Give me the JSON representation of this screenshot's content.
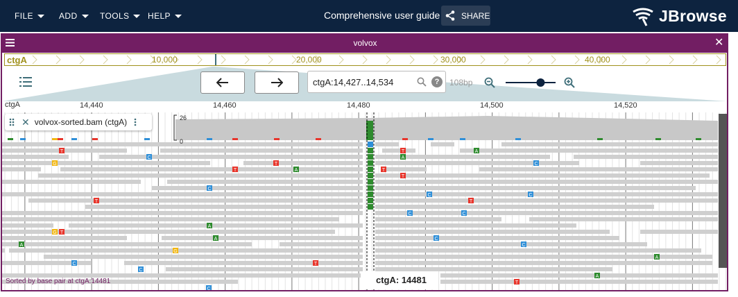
{
  "menus": [
    "FILE",
    "ADD",
    "TOOLS",
    "HELP"
  ],
  "session_title": "Comprehensive user guide",
  "share_label": "SHARE",
  "logo_text": "JBrowse",
  "view": {
    "name": "volvox",
    "overview": {
      "refname": "ctgA",
      "ticks": [
        {
          "label": "10,000",
          "bp": 10000
        },
        {
          "label": "20,000",
          "bp": 20000
        },
        {
          "label": "30,000",
          "bp": 30000
        },
        {
          "label": "40,000",
          "bp": 40000
        }
      ]
    },
    "location": "ctgA:14,427..14,534",
    "width_label": "108bp",
    "zoom_level": 0.7,
    "ruler": {
      "refname": "ctgA",
      "ticks": [
        {
          "label": "14,440",
          "bp": 14440
        },
        {
          "label": "14,460",
          "bp": 14460
        },
        {
          "label": "14,480",
          "bp": 14480
        },
        {
          "label": "14,500",
          "bp": 14500
        },
        {
          "label": "14,520",
          "bp": 14520
        }
      ]
    },
    "track": {
      "name": "volvox-sorted.bam (ctgA)",
      "coverage_max": "26",
      "coverage_min": "0",
      "sort_note": "Sorted by base pair at ctgA:14481",
      "center_label": "ctgA: 14481"
    }
  },
  "colors": {
    "appbar": "#0d233f",
    "view_accent": "#721e63",
    "overview": "#a0911c",
    "A": "#2e8b2e",
    "C": "#2f8fd8",
    "G": "#f2b711",
    "T": "#e8352b",
    "read": "#cfcfcf"
  }
}
